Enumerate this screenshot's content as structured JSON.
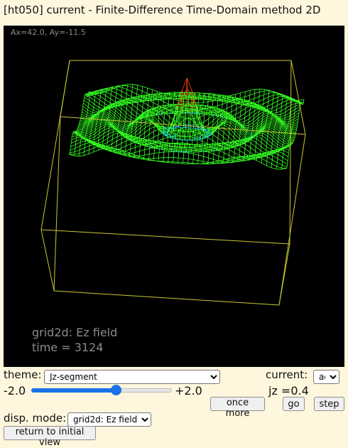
{
  "window": {
    "title": "[ht050] current - Finite-Difference Time-Domain method 2D"
  },
  "canvas": {
    "angle_readout": "Ax=42.0, Ay=-11.5",
    "overlay_line1": "grid2d: Ez field",
    "overlay_line2": "time = 3124",
    "colors": {
      "background": "#000000",
      "box": "#c8c830",
      "mesh": "#33ff22",
      "peak_hot": "#ff4400",
      "peak_cool": "#22ccff"
    }
  },
  "controls": {
    "theme_label": "theme:",
    "theme_value": "Jz-segment",
    "current_label": "current:",
    "current_value": "ac",
    "slider_min_label": "-2.0",
    "slider_max_label": "+2.0",
    "slider_value": 0.4,
    "jz_readout": "jz =0.4",
    "once_more_label": "once more",
    "go_label": "go",
    "step_label": "step",
    "disp_mode_label": "disp. mode:",
    "disp_mode_value": "grid2d: Ez field",
    "return_label": "return to initial view"
  }
}
